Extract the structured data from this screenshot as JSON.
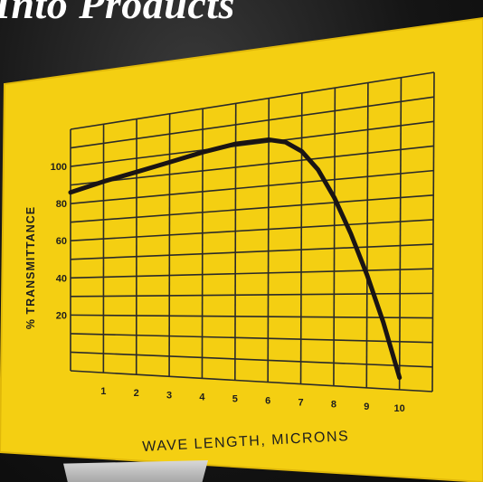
{
  "headline": "Into Products",
  "chart_data": {
    "type": "line",
    "title": "",
    "xlabel": "WAVE LENGTH, MICRONS",
    "ylabel": "% TRANSMITTANCE",
    "x_ticks": [
      1,
      2,
      3,
      4,
      5,
      6,
      7,
      8,
      9,
      10
    ],
    "y_ticks": [
      20,
      40,
      60,
      80,
      100
    ],
    "xlim": [
      0,
      11
    ],
    "ylim": [
      -10,
      120
    ],
    "grid": true,
    "series": [
      {
        "x": [
          0,
          1,
          2,
          3,
          4,
          5,
          6,
          6.5,
          7,
          7.5,
          8,
          8.5,
          9,
          9.5,
          10
        ],
        "y": [
          86,
          90,
          93,
          96,
          99,
          101,
          101,
          99,
          94,
          85,
          72,
          56,
          38,
          18,
          -5
        ]
      }
    ]
  },
  "colors": {
    "board": "#f4cf12",
    "board_edge": "#e0b80a",
    "grid": "#2a2a2a",
    "curve": "#1a1414",
    "text": "#1e1e1e"
  }
}
